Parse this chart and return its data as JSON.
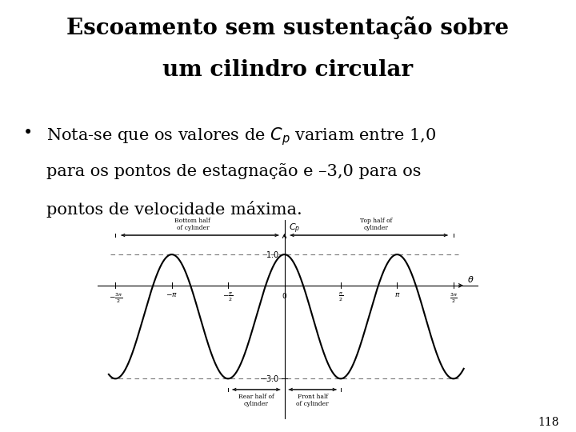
{
  "title_line1": "Escoamento sem sustentação sobre",
  "title_line2": "um cilindro circular",
  "bullet_line1": "Nota-se que os valores de $C_p$ variam entre 1,0",
  "bullet_line2": "para os pontos de estagnação e –3,0 para os",
  "bullet_line3": "pontos de velocidade máxima.",
  "page_number": "118",
  "background_color": "#ffffff",
  "curve_color": "#000000",
  "dashed_color": "#777777",
  "label_bottom_half": "Bottom half\nof cylinder",
  "label_top_half": "Top half of\ncylinder",
  "label_rear_half": "Rear half of\ncylinder",
  "label_front_half": "Front half\nof cylinder",
  "cp_label": "$C_p$",
  "theta_label": "$\\theta$"
}
